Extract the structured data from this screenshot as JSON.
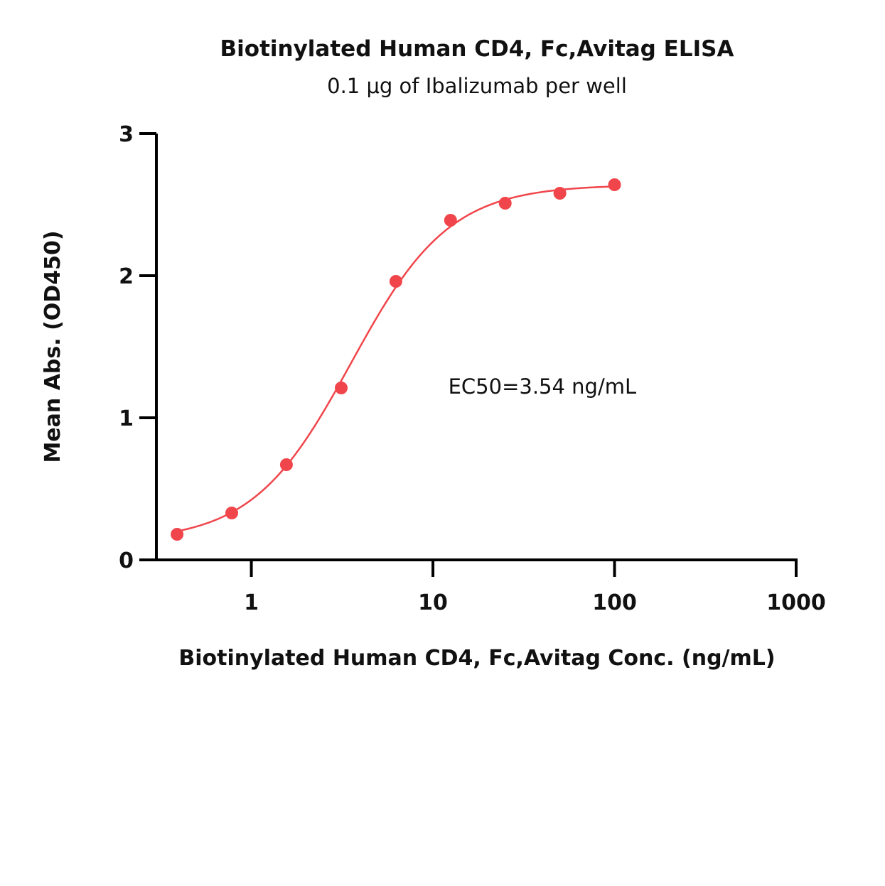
{
  "chart_data": {
    "type": "scatter",
    "title": "Biotinylated Human CD4, Fc,Avitag ELISA",
    "subtitle": "0.1 μg of Ibalizumab per well",
    "xlabel": "Biotinylated Human CD4, Fc,Avitag Conc. (ng/mL)",
    "ylabel": "Mean Abs. (OD450)",
    "x_scale": "log",
    "xlim": [
      0.3,
      1000
    ],
    "ylim": [
      0,
      3
    ],
    "x_ticks": [
      {
        "value": 1,
        "label": "1"
      },
      {
        "value": 10,
        "label": "10"
      },
      {
        "value": 100,
        "label": "100"
      },
      {
        "value": 1000,
        "label": "1000"
      }
    ],
    "y_ticks": [
      {
        "value": 0,
        "label": "0"
      },
      {
        "value": 1,
        "label": "1"
      },
      {
        "value": 2,
        "label": "2"
      },
      {
        "value": 3,
        "label": "3"
      }
    ],
    "grid": false,
    "color": "#f0464b",
    "series": [
      {
        "x": [
          0.39,
          0.78,
          1.56,
          3.125,
          6.25,
          12.5,
          25,
          50,
          100
        ],
        "y": [
          0.18,
          0.33,
          0.67,
          1.21,
          1.96,
          2.39,
          2.51,
          2.58,
          2.64
        ]
      }
    ],
    "fit": {
      "type": "4PL",
      "bottom": 0.13,
      "top": 2.64,
      "ec50": 3.54,
      "hill": 1.6
    },
    "annotations": [
      {
        "text": "EC50=3.54 ng/mL",
        "x": 40,
        "y": 1.22
      }
    ]
  }
}
